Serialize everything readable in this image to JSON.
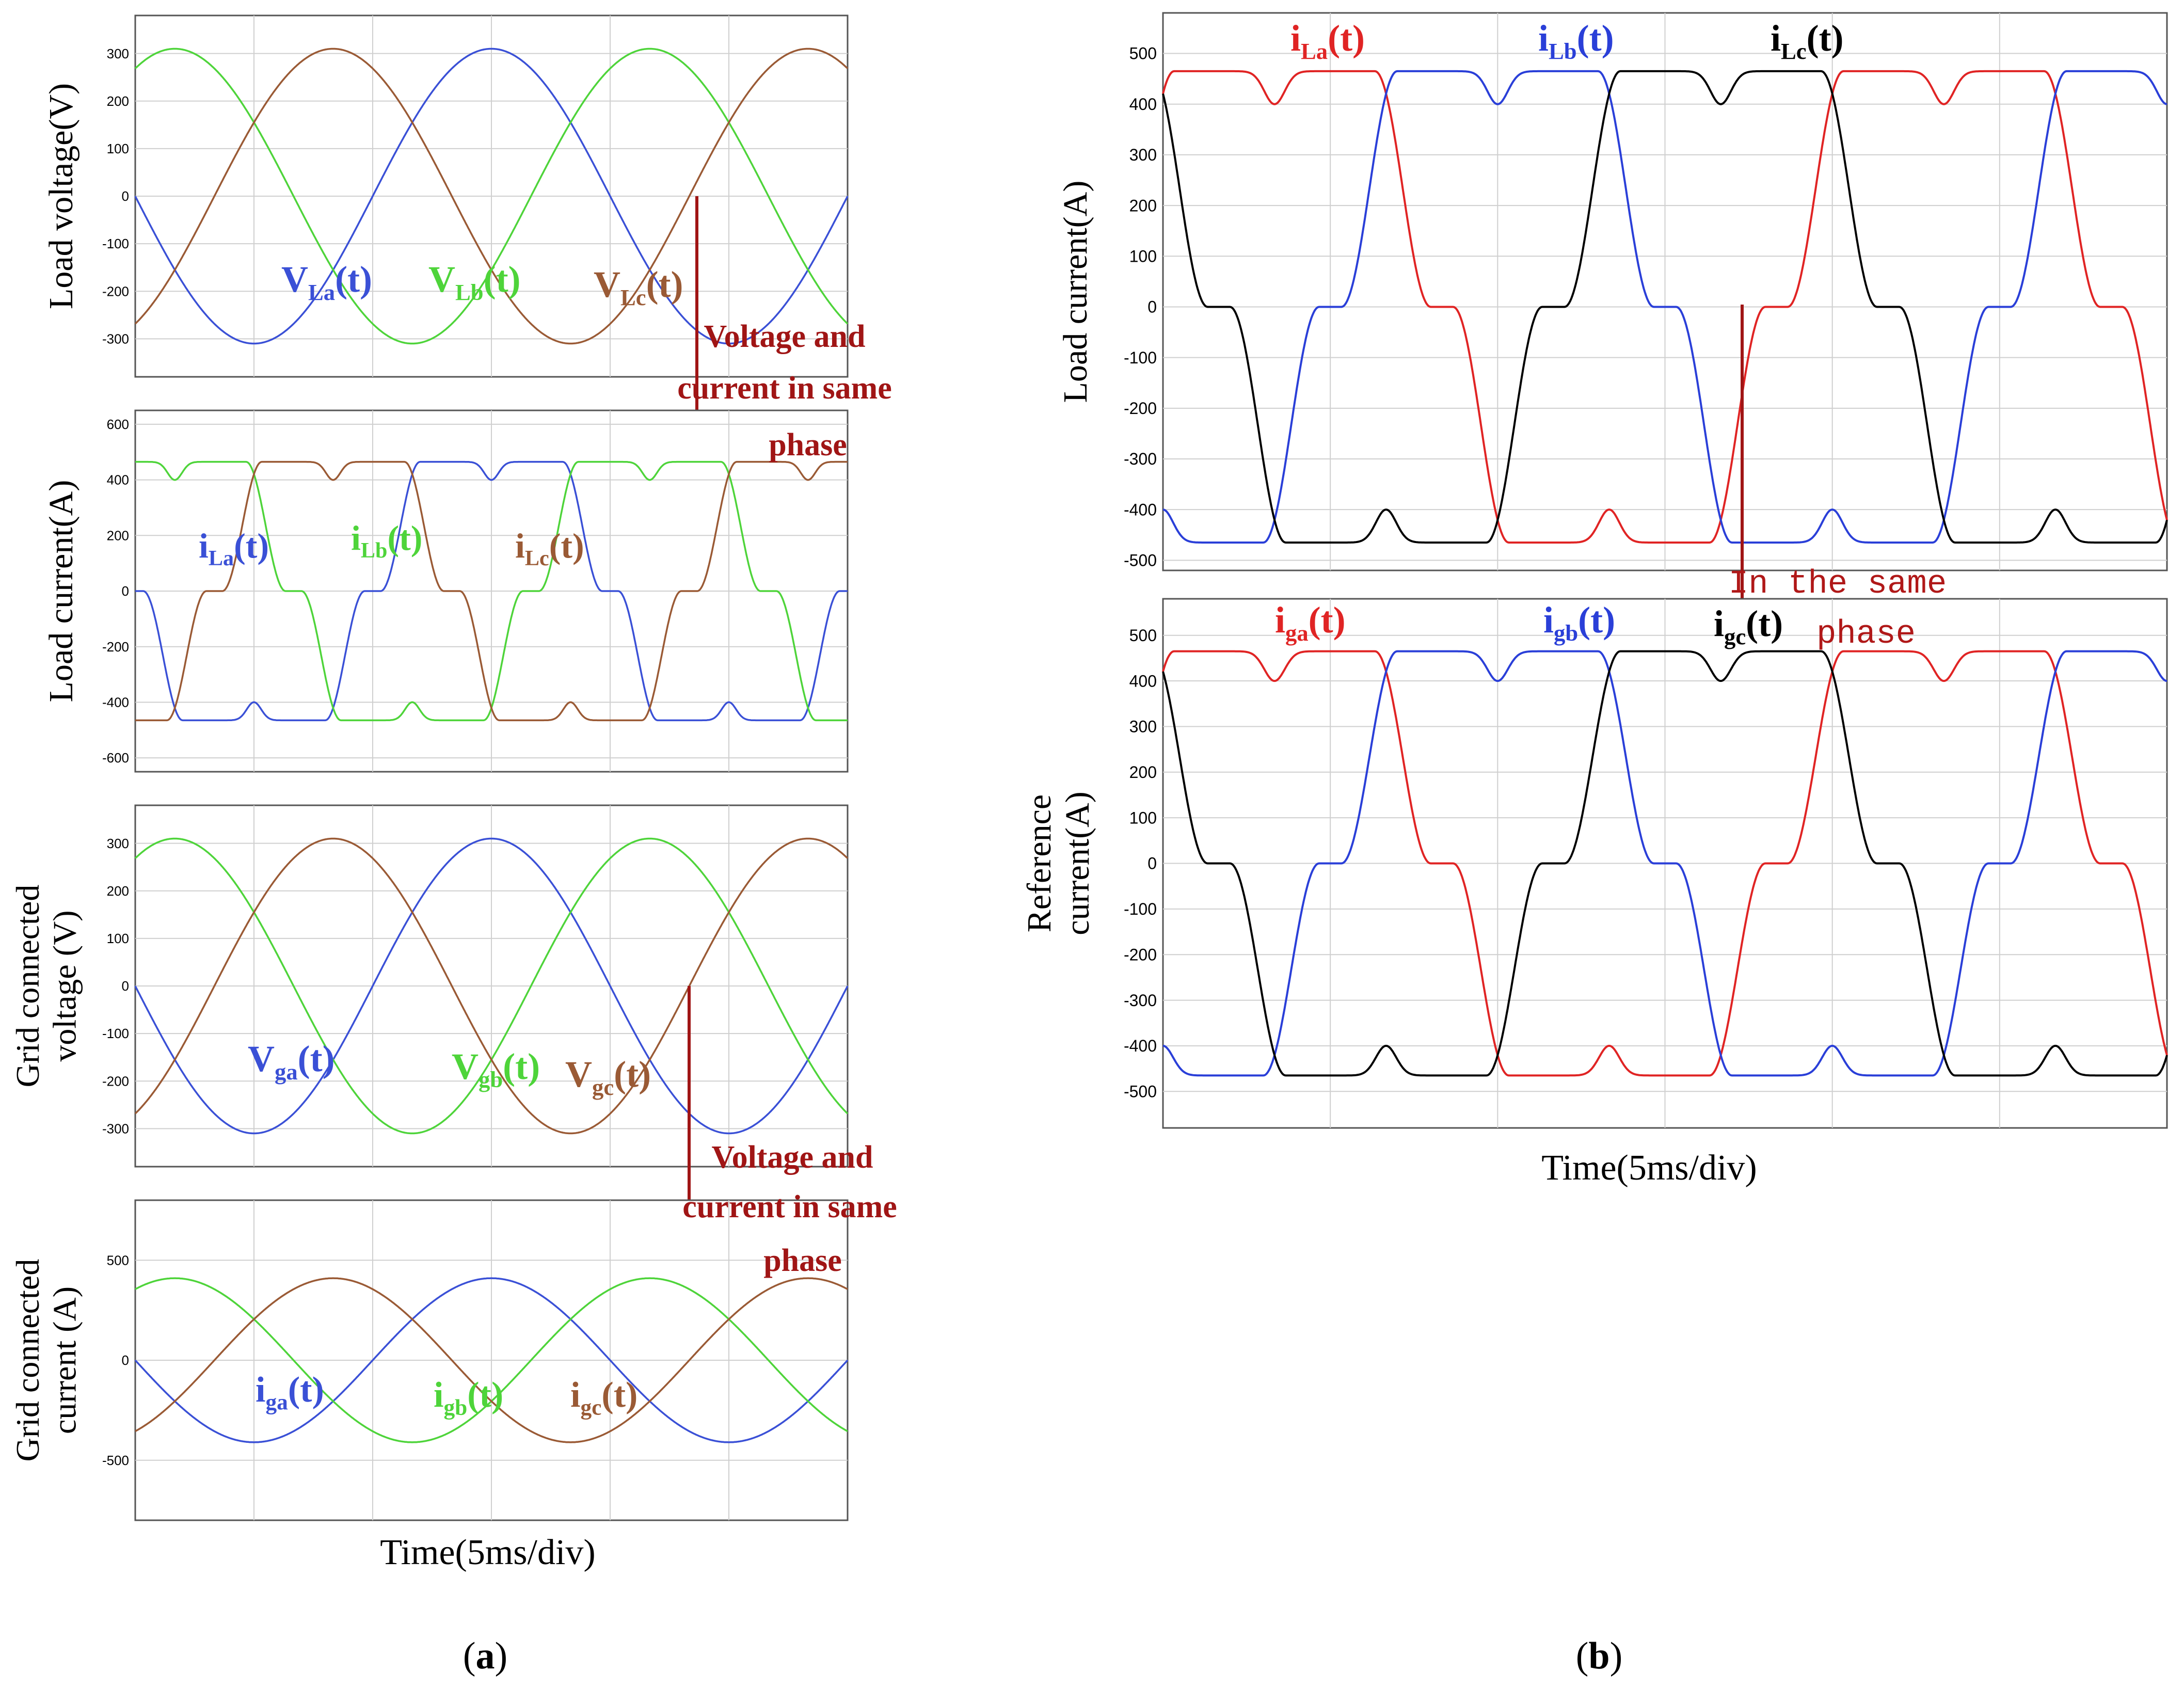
{
  "figure": {
    "panel_a_caption": "(a)",
    "panel_a_letter": "a",
    "panel_b_caption": "(b)",
    "panel_b_letter": "b",
    "time_axis_label": "Time(5ms/div)",
    "annotation_voltage_current": [
      "Voltage and",
      "current in same",
      "phase"
    ],
    "annotation_same_phase": [
      "In the same",
      "phase"
    ]
  },
  "colors": {
    "blue": "#3a50d6",
    "green": "#4ed43a",
    "brown": "#9a5a35",
    "red": "#e02424",
    "blue_b": "#2a3fd8",
    "black": "#000000",
    "marker": "#a01515",
    "grid": "#cfcfcf"
  },
  "chart_data": [
    {
      "id": "a1",
      "type": "line",
      "panel": "a",
      "title": "",
      "xlabel": "",
      "ylabel": "Load voltage(V)",
      "ylim": [
        -380,
        380
      ],
      "yticks": [
        -300,
        -200,
        -100,
        0,
        100,
        200,
        300
      ],
      "grid": true,
      "waveform": "sine",
      "amplitude": 310,
      "frequency_hz": 50,
      "time_ms": [
        0,
        30
      ],
      "x_divisions": 6,
      "series": [
        {
          "name": "VLa(t)",
          "main": "V",
          "sub": "La",
          "rest": "(t)",
          "phase_deg": 180,
          "color_key": "blue"
        },
        {
          "name": "VLb(t)",
          "main": "V",
          "sub": "Lb",
          "rest": "(t)",
          "phase_deg": 60,
          "color_key": "green"
        },
        {
          "name": "VLc(t)",
          "main": "V",
          "sub": "Lc",
          "rest": "(t)",
          "phase_deg": -60,
          "color_key": "brown"
        }
      ]
    },
    {
      "id": "a2",
      "type": "line",
      "panel": "a",
      "title": "",
      "xlabel": "",
      "ylabel": "Load current(A)",
      "ylim": [
        -650,
        650
      ],
      "yticks": [
        -600,
        -400,
        -200,
        0,
        200,
        400,
        600
      ],
      "grid": true,
      "waveform": "rectifier",
      "amplitude": 465,
      "frequency_hz": 50,
      "time_ms": [
        0,
        30
      ],
      "x_divisions": 6,
      "series": [
        {
          "name": "iLa(t)",
          "main": "i",
          "sub": "La",
          "rest": "(t)",
          "phase_deg": 180,
          "color_key": "blue"
        },
        {
          "name": "iLb(t)",
          "main": "i",
          "sub": "Lb",
          "rest": "(t)",
          "phase_deg": 60,
          "color_key": "green"
        },
        {
          "name": "iLc(t)",
          "main": "i",
          "sub": "Lc",
          "rest": "(t)",
          "phase_deg": -60,
          "color_key": "brown"
        }
      ]
    },
    {
      "id": "a3",
      "type": "line",
      "panel": "a",
      "title": "",
      "xlabel": "",
      "ylabel": "Grid connected voltage (V)",
      "ylabel_lines": [
        "Grid connected",
        "voltage (V)"
      ],
      "ylim": [
        -380,
        380
      ],
      "yticks": [
        -300,
        -200,
        -100,
        0,
        100,
        200,
        300
      ],
      "grid": true,
      "waveform": "sine",
      "amplitude": 310,
      "frequency_hz": 50,
      "time_ms": [
        0,
        30
      ],
      "x_divisions": 6,
      "series": [
        {
          "name": "Vga(t)",
          "main": "V",
          "sub": "ga",
          "rest": "(t)",
          "phase_deg": 180,
          "color_key": "blue"
        },
        {
          "name": "Vgb(t)",
          "main": "V",
          "sub": "gb",
          "rest": "(t)",
          "phase_deg": 60,
          "color_key": "green"
        },
        {
          "name": "Vgc(t)",
          "main": "V",
          "sub": "gc",
          "rest": "(t)",
          "phase_deg": -60,
          "color_key": "brown"
        }
      ]
    },
    {
      "id": "a4",
      "type": "line",
      "panel": "a",
      "title": "",
      "xlabel": "Time(5ms/div)",
      "ylabel": "Grid connected current (A)",
      "ylabel_lines": [
        "Grid connected",
        "current (A)"
      ],
      "ylim": [
        -800,
        800
      ],
      "yticks": [
        -500,
        0,
        500
      ],
      "grid": true,
      "waveform": "sine",
      "amplitude": 410,
      "frequency_hz": 50,
      "time_ms": [
        0,
        30
      ],
      "x_divisions": 6,
      "series": [
        {
          "name": "iga(t)",
          "main": "i",
          "sub": "ga",
          "rest": "(t)",
          "phase_deg": 180,
          "color_key": "blue"
        },
        {
          "name": "igb(t)",
          "main": "i",
          "sub": "gb",
          "rest": "(t)",
          "phase_deg": 60,
          "color_key": "green"
        },
        {
          "name": "igc(t)",
          "main": "i",
          "sub": "gc",
          "rest": "(t)",
          "phase_deg": -60,
          "color_key": "brown"
        }
      ]
    },
    {
      "id": "b1",
      "type": "line",
      "panel": "b",
      "title": "",
      "xlabel": "",
      "ylabel": "Load current(A)",
      "ylim": [
        -520,
        580
      ],
      "yticks": [
        -500,
        -400,
        -300,
        -200,
        -100,
        0,
        100,
        200,
        300,
        400,
        500
      ],
      "grid": true,
      "waveform": "rectifier",
      "amplitude": 465,
      "frequency_hz": 50,
      "time_ms": [
        0,
        30
      ],
      "x_divisions": 6,
      "series": [
        {
          "name": "iLa(t)",
          "main": "i",
          "sub": "La",
          "rest": "(t)",
          "phase_deg": 30,
          "color_key": "red"
        },
        {
          "name": "iLb(t)",
          "main": "i",
          "sub": "Lb",
          "rest": "(t)",
          "phase_deg": -90,
          "color_key": "blue_b"
        },
        {
          "name": "iLc(t)",
          "main": "i",
          "sub": "Lc",
          "rest": "(t)",
          "phase_deg": 150,
          "color_key": "black"
        }
      ]
    },
    {
      "id": "b2",
      "type": "line",
      "panel": "b",
      "title": "",
      "xlabel": "Time(5ms/div)",
      "ylabel": "Reference current(A)",
      "ylabel_lines": [
        "Reference",
        "current(A)"
      ],
      "ylim": [
        -580,
        580
      ],
      "yticks": [
        -500,
        -400,
        -300,
        -200,
        -100,
        0,
        100,
        200,
        300,
        400,
        500
      ],
      "grid": true,
      "waveform": "rectifier",
      "amplitude": 465,
      "frequency_hz": 50,
      "time_ms": [
        0,
        30
      ],
      "x_divisions": 6,
      "series": [
        {
          "name": "iga(t)",
          "main": "i",
          "sub": "ga",
          "rest": "(t)",
          "phase_deg": 30,
          "color_key": "red"
        },
        {
          "name": "igb(t)",
          "main": "i",
          "sub": "gb",
          "rest": "(t)",
          "phase_deg": -90,
          "color_key": "blue_b"
        },
        {
          "name": "igc(t)",
          "main": "i",
          "sub": "gc",
          "rest": "(t)",
          "phase_deg": 150,
          "color_key": "black"
        }
      ]
    }
  ]
}
